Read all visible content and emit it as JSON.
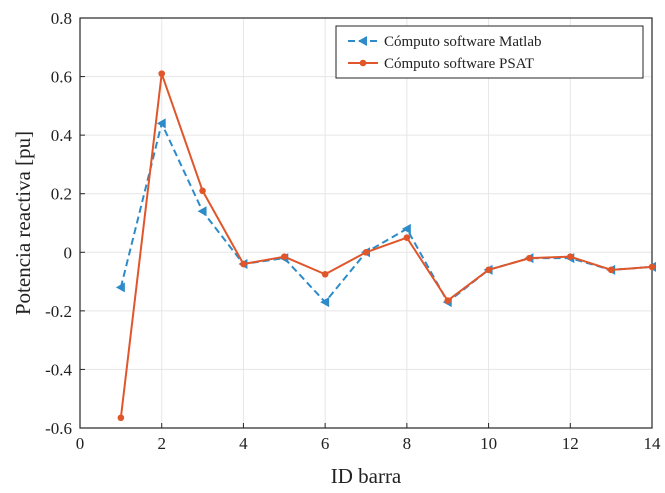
{
  "chart_data": {
    "type": "line",
    "title": "",
    "xlabel": "ID barra",
    "ylabel": "Potencia  reactiva [pu]",
    "xlim": [
      0,
      14
    ],
    "ylim": [
      -0.6,
      0.8
    ],
    "x_ticks": [
      0,
      2,
      4,
      6,
      8,
      10,
      12,
      14
    ],
    "y_ticks": [
      -0.6,
      -0.4,
      -0.2,
      0,
      0.2,
      0.4,
      0.6,
      0.8
    ],
    "x_tick_labels": [
      "0",
      "2",
      "4",
      "6",
      "8",
      "10",
      "12",
      "14"
    ],
    "y_tick_labels": [
      "-0.6",
      "-0.4",
      "-0.2",
      "0",
      "0.2",
      "0.4",
      "0.6",
      "0.8"
    ],
    "grid": true,
    "legend_position": "top-right",
    "x": [
      1,
      2,
      3,
      4,
      5,
      6,
      7,
      8,
      9,
      10,
      11,
      12,
      13,
      14
    ],
    "series": [
      {
        "name": "Cómputo software Matlab",
        "color": "#2e8bc9",
        "line_style": "dashed",
        "marker": "triangle-left",
        "values": [
          -0.12,
          0.44,
          0.14,
          -0.04,
          -0.02,
          -0.17,
          0.0,
          0.08,
          -0.17,
          -0.06,
          -0.02,
          -0.02,
          -0.06,
          -0.05
        ]
      },
      {
        "name": "Cómputo software PSAT",
        "color": "#e0562a",
        "line_style": "solid",
        "marker": "dot",
        "values": [
          -0.565,
          0.61,
          0.21,
          -0.04,
          -0.015,
          -0.075,
          0.0,
          0.05,
          -0.165,
          -0.06,
          -0.02,
          -0.015,
          -0.06,
          -0.05
        ]
      }
    ]
  }
}
